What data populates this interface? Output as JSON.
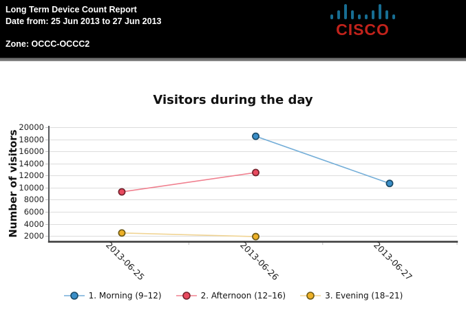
{
  "header": {
    "title": "Long Term Device Count Report",
    "date_range": "Date from: 25 Jun 2013 to 27 Jun 2013",
    "zone": "Zone: OCCC-OCCC2",
    "brand": "CISCO",
    "brand_bar_color": "#176d92",
    "brand_text_color": "#c1221b"
  },
  "chart_data": {
    "type": "line",
    "title": "Visitors during the day",
    "xlabel": "",
    "ylabel": "Number of visitors",
    "categories": [
      "2013-06-25",
      "2013-06-26",
      "2013-06-27"
    ],
    "yticks": [
      2000,
      4000,
      6000,
      8000,
      10000,
      12000,
      14000,
      16000,
      18000,
      20000
    ],
    "ylim": [
      1000,
      20000
    ],
    "grid": true,
    "legend_position": "bottom",
    "series": [
      {
        "name": "1. Morning (9–12)",
        "values": [
          null,
          18500,
          10700
        ],
        "marker_color": "#3a8ec8",
        "line_color": "#74aed8",
        "edge_color": "#1b4a66"
      },
      {
        "name": "2. Afternoon (12–16)",
        "values": [
          9300,
          12500,
          null
        ],
        "marker_color": "#e84a5f",
        "line_color": "#f0808f",
        "edge_color": "#73212c"
      },
      {
        "name": "3. Evening (18–21)",
        "values": [
          2500,
          1900,
          null
        ],
        "marker_color": "#edb026",
        "line_color": "#f0d494",
        "edge_color": "#6e5a16"
      }
    ],
    "style": {
      "grid_color": "#dcdcdc",
      "tick_color": "#bdbdbd",
      "y_axis_color": "#55585b",
      "x_axis_color": "#3f3f3f"
    }
  }
}
